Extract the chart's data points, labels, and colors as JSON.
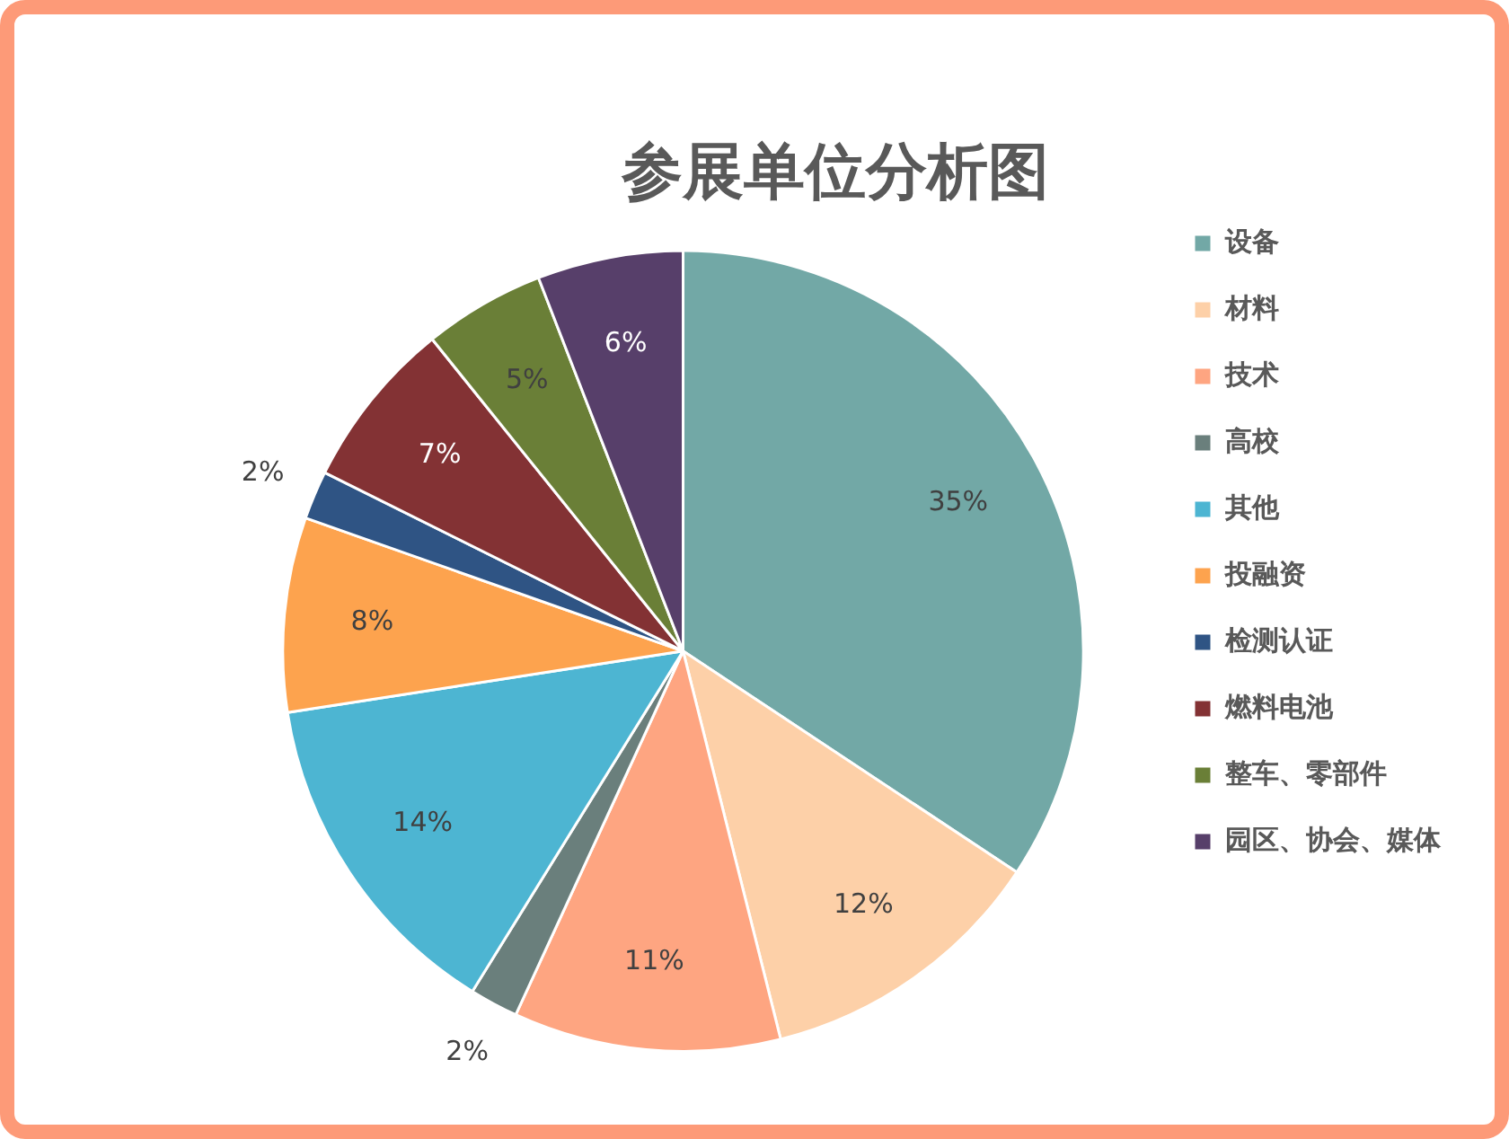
{
  "chart_data": {
    "type": "pie",
    "title": "参展单位分析图",
    "categories": [
      "设备",
      "材料",
      "技术",
      "高校",
      "其他",
      "投融资",
      "检测认证",
      "燃料电池",
      "整车、零部件",
      "园区、协会、媒体"
    ],
    "values": [
      35,
      12,
      11,
      2,
      14,
      8,
      2,
      7,
      5,
      6
    ],
    "value_labels": [
      "35%",
      "12%",
      "11%",
      "2%",
      "14%",
      "8%",
      "2%",
      "7%",
      "5%",
      "6%"
    ],
    "colors": [
      "#72a8a6",
      "#fdd0a8",
      "#fea581",
      "#6a7f7c",
      "#4db5d2",
      "#fda34e",
      "#2f5484",
      "#833234",
      "#6a7f37",
      "#573f6a"
    ],
    "legend": "right"
  }
}
